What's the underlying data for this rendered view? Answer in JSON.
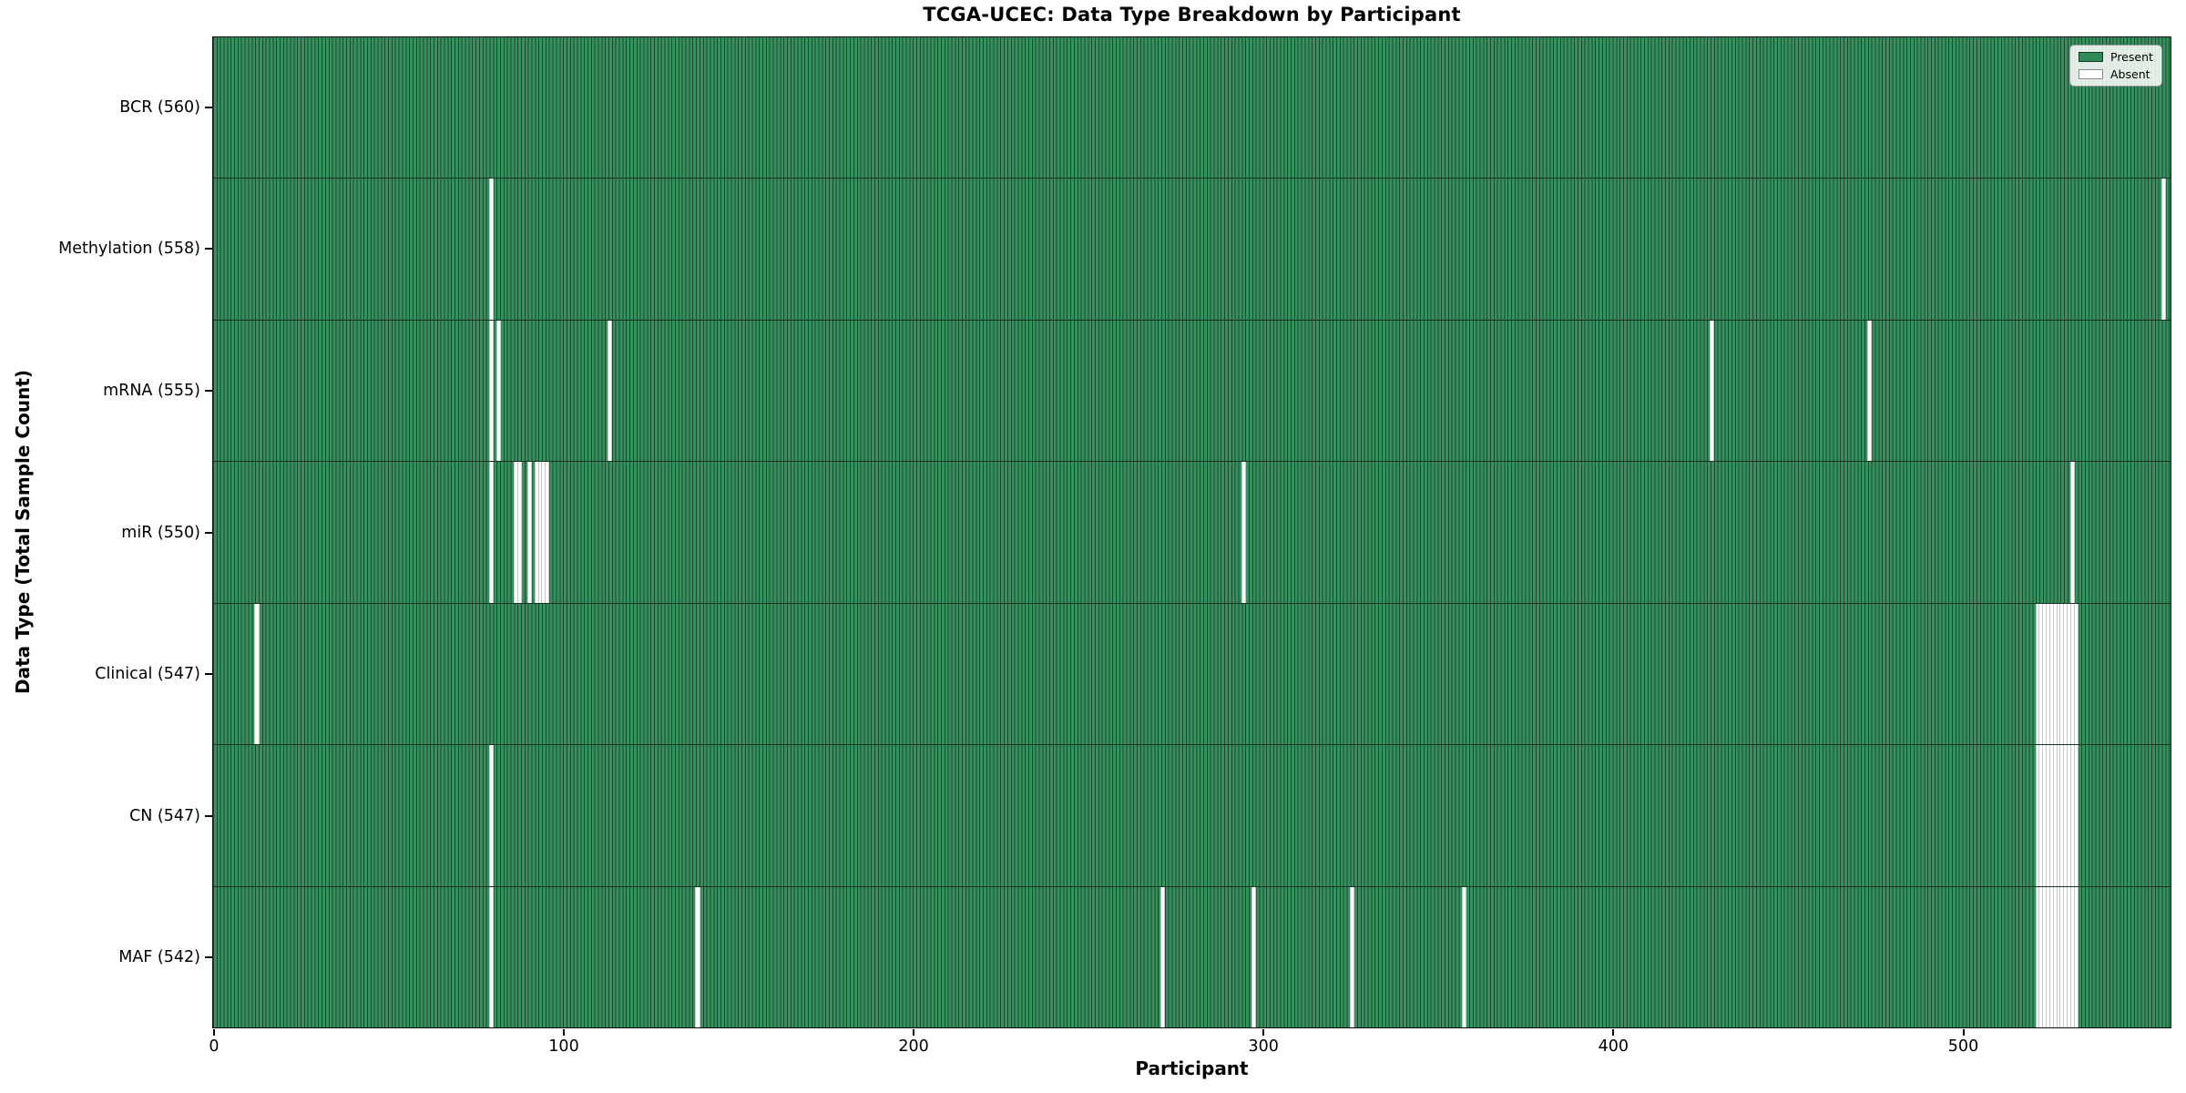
{
  "figure": {
    "title": "TCGA-UCEC: Data Type Breakdown by Participant",
    "xlabel": "Participant",
    "ylabel": "Data Type (Total Sample Count)"
  },
  "legend": {
    "items": [
      {
        "label": "Present",
        "color": "#2e8b57"
      },
      {
        "label": "Absent",
        "color": "#ffffff"
      }
    ]
  },
  "chart_data": {
    "type": "heatmap",
    "title": "TCGA-UCEC: Data Type Breakdown by Participant",
    "xlabel": "Participant",
    "ylabel": "Data Type (Total Sample Count)",
    "x_ticks": [
      0,
      100,
      200,
      300,
      400,
      500
    ],
    "xlim": [
      -0.5,
      559.5
    ],
    "n_participants": 560,
    "grid": false,
    "legend_position": "upper right",
    "colors": {
      "present_fill": "#37915f",
      "present_edge": "#1b4a2f",
      "absent_fill": "#ffffff",
      "absent_edge": "#c9c9c9"
    },
    "rows": [
      {
        "data_type": "BCR",
        "total": 560,
        "tick_label": "BCR (560)",
        "absent_participants": []
      },
      {
        "data_type": "Methylation",
        "total": 558,
        "tick_label": "Methylation (558)",
        "absent_participants": [
          79,
          557
        ]
      },
      {
        "data_type": "mRNA",
        "total": 555,
        "tick_label": "mRNA (555)",
        "absent_participants": [
          79,
          81,
          113,
          428,
          473
        ]
      },
      {
        "data_type": "miR",
        "total": 550,
        "tick_label": "miR (550)",
        "absent_participants": [
          79,
          86,
          87,
          90,
          92,
          93,
          94,
          95,
          294,
          531
        ]
      },
      {
        "data_type": "Clinical",
        "total": 547,
        "tick_label": "Clinical (547)",
        "absent_participants": [
          12,
          521,
          522,
          523,
          524,
          525,
          526,
          527,
          528,
          529,
          530,
          531,
          532
        ]
      },
      {
        "data_type": "CN",
        "total": 547,
        "tick_label": "CN (547)",
        "absent_participants": [
          79,
          521,
          522,
          523,
          524,
          525,
          526,
          527,
          528,
          529,
          530,
          531,
          532
        ]
      },
      {
        "data_type": "MAF",
        "total": 542,
        "tick_label": "MAF (542)",
        "absent_participants": [
          79,
          138,
          271,
          297,
          325,
          357,
          521,
          522,
          523,
          524,
          525,
          526,
          527,
          528,
          529,
          530,
          531,
          532
        ]
      }
    ]
  }
}
